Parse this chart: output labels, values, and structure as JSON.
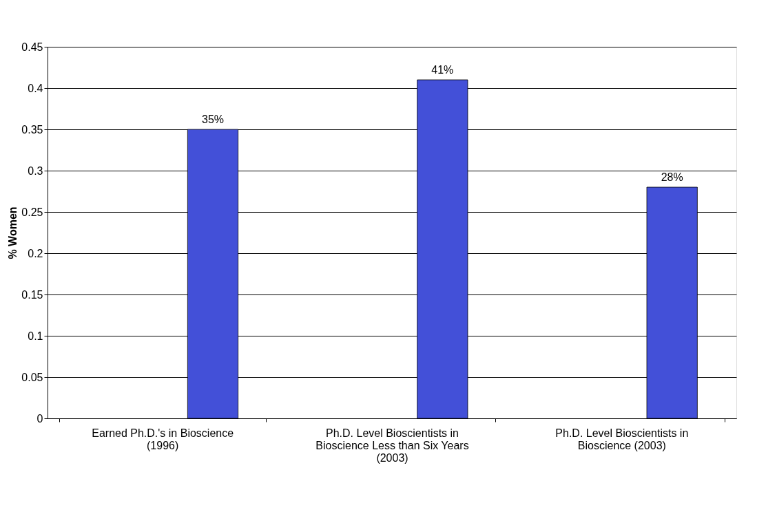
{
  "chart_data": {
    "type": "bar",
    "ylabel": "% Women",
    "categories": [
      "Earned Ph.D.'s in Bioscience (1996)",
      "Ph.D. Level Bioscientists in Bioscience Less than Six Years (2003)",
      "Ph.D. Level Bioscientists in Bioscience (2003)"
    ],
    "values": [
      0.35,
      0.41,
      0.28
    ],
    "value_labels": [
      "35%",
      "41%",
      "28%"
    ],
    "color": "#4350d8",
    "ylim": [
      0,
      0.45
    ],
    "yticks": [
      0,
      0.05,
      0.1,
      0.15,
      0.2,
      0.25,
      0.3,
      0.35,
      0.4,
      0.45
    ],
    "grid": "y"
  }
}
